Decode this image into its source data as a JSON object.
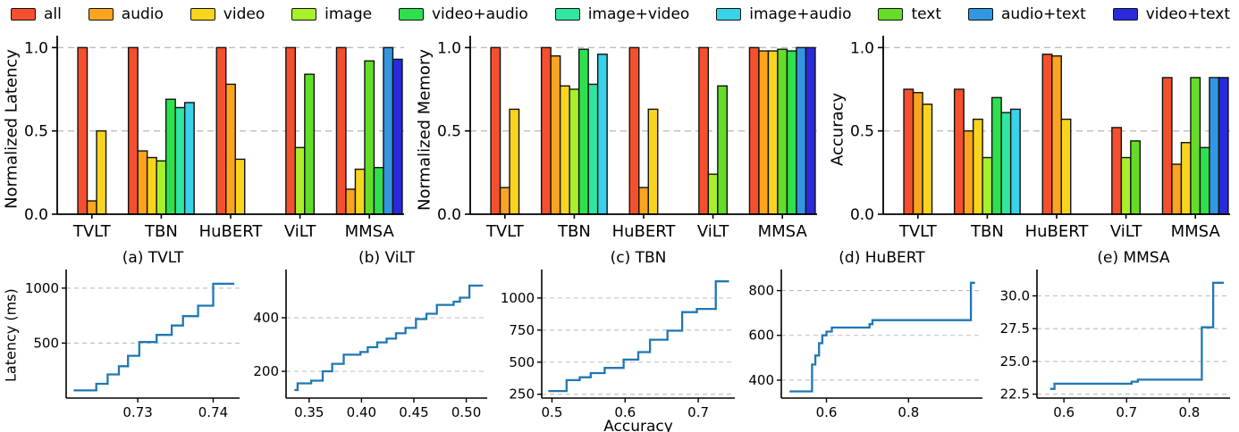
{
  "figure": {
    "line_color": "#1f77b4",
    "grid_color": "#bdbdbd",
    "legend": {
      "items": [
        {
          "label": "all",
          "color": "#F4502D"
        },
        {
          "label": "audio",
          "color": "#FCA420"
        },
        {
          "label": "video",
          "color": "#F9D41F"
        },
        {
          "label": "image",
          "color": "#A8F02B"
        },
        {
          "label": "video+audio",
          "color": "#2EE04E"
        },
        {
          "label": "image+video",
          "color": "#30E6A0"
        },
        {
          "label": "image+audio",
          "color": "#38D2EA"
        },
        {
          "label": "text",
          "color": "#64DC28"
        },
        {
          "label": "audio+text",
          "color": "#3396E2"
        },
        {
          "label": "video+text",
          "color": "#2A2ADC"
        }
      ]
    }
  },
  "chart_data": [
    {
      "type": "bar",
      "ylabel": "Normalized Latency",
      "ylim": [
        0,
        1.05
      ],
      "yticks": [
        0,
        0.5,
        1.0
      ],
      "ytick_labels": [
        "0.0",
        "0.5",
        "1.0"
      ],
      "grid_yticks": [
        0.5,
        1.0
      ],
      "categories": [
        "TVLT",
        "TBN",
        "HuBERT",
        "ViLT",
        "MMSA"
      ],
      "groups": [
        {
          "category": "TVLT",
          "bars": [
            [
              "all",
              1.0
            ],
            [
              "audio",
              0.08
            ],
            [
              "video",
              0.5
            ]
          ]
        },
        {
          "category": "TBN",
          "bars": [
            [
              "all",
              1.0
            ],
            [
              "audio",
              0.38
            ],
            [
              "video",
              0.34
            ],
            [
              "image",
              0.32
            ],
            [
              "video+audio",
              0.69
            ],
            [
              "image+video",
              0.64
            ],
            [
              "image+audio",
              0.67
            ]
          ]
        },
        {
          "category": "HuBERT",
          "bars": [
            [
              "all",
              1.0
            ],
            [
              "audio",
              0.78
            ],
            [
              "video",
              0.33
            ]
          ]
        },
        {
          "category": "ViLT",
          "bars": [
            [
              "all",
              1.0
            ],
            [
              "image",
              0.4
            ],
            [
              "text",
              0.84
            ]
          ]
        },
        {
          "category": "MMSA",
          "bars": [
            [
              "all",
              1.0
            ],
            [
              "audio",
              0.15
            ],
            [
              "video",
              0.27
            ],
            [
              "text",
              0.92
            ],
            [
              "video+audio",
              0.28
            ],
            [
              "audio+text",
              1.0
            ],
            [
              "video+text",
              0.93
            ]
          ]
        }
      ]
    },
    {
      "type": "bar",
      "ylabel": "Normalized Memory",
      "ylim": [
        0,
        1.05
      ],
      "yticks": [
        0,
        0.5,
        1.0
      ],
      "ytick_labels": [
        "0.0",
        "0.5",
        "1.0"
      ],
      "grid_yticks": [
        0.5,
        1.0
      ],
      "categories": [
        "TVLT",
        "TBN",
        "HuBERT",
        "ViLT",
        "MMSA"
      ],
      "groups": [
        {
          "category": "TVLT",
          "bars": [
            [
              "all",
              1.0
            ],
            [
              "audio",
              0.16
            ],
            [
              "video",
              0.63
            ]
          ]
        },
        {
          "category": "TBN",
          "bars": [
            [
              "all",
              1.0
            ],
            [
              "audio",
              0.95
            ],
            [
              "video",
              0.77
            ],
            [
              "image",
              0.75
            ],
            [
              "video+audio",
              0.99
            ],
            [
              "image+video",
              0.78
            ],
            [
              "image+audio",
              0.96
            ]
          ]
        },
        {
          "category": "HuBERT",
          "bars": [
            [
              "all",
              1.0
            ],
            [
              "audio",
              0.16
            ],
            [
              "video",
              0.63
            ]
          ]
        },
        {
          "category": "ViLT",
          "bars": [
            [
              "all",
              1.0
            ],
            [
              "image",
              0.24
            ],
            [
              "text",
              0.77
            ]
          ]
        },
        {
          "category": "MMSA",
          "bars": [
            [
              "all",
              1.0
            ],
            [
              "audio",
              0.98
            ],
            [
              "video",
              0.98
            ],
            [
              "text",
              0.99
            ],
            [
              "video+audio",
              0.98
            ],
            [
              "audio+text",
              1.0
            ],
            [
              "video+text",
              1.0
            ]
          ]
        }
      ]
    },
    {
      "type": "bar",
      "ylabel": "Accuracy",
      "ylim": [
        0,
        1.05
      ],
      "yticks": [
        0,
        0.5,
        1.0
      ],
      "ytick_labels": [
        "0.0",
        "0.5",
        "1.0"
      ],
      "grid_yticks": [
        0.5,
        1.0
      ],
      "categories": [
        "TVLT",
        "TBN",
        "HuBERT",
        "ViLT",
        "MMSA"
      ],
      "groups": [
        {
          "category": "TVLT",
          "bars": [
            [
              "all",
              0.75
            ],
            [
              "audio",
              0.73
            ],
            [
              "video",
              0.66
            ]
          ]
        },
        {
          "category": "TBN",
          "bars": [
            [
              "all",
              0.75
            ],
            [
              "audio",
              0.5
            ],
            [
              "video",
              0.57
            ],
            [
              "image",
              0.34
            ],
            [
              "video+audio",
              0.7
            ],
            [
              "image+video",
              0.61
            ],
            [
              "image+audio",
              0.63
            ]
          ]
        },
        {
          "category": "HuBERT",
          "bars": [
            [
              "all",
              0.96
            ],
            [
              "audio",
              0.95
            ],
            [
              "video",
              0.57
            ]
          ]
        },
        {
          "category": "ViLT",
          "bars": [
            [
              "all",
              0.52
            ],
            [
              "image",
              0.34
            ],
            [
              "text",
              0.44
            ]
          ]
        },
        {
          "category": "MMSA",
          "bars": [
            [
              "all",
              0.82
            ],
            [
              "audio",
              0.3
            ],
            [
              "video",
              0.43
            ],
            [
              "text",
              0.82
            ],
            [
              "video+audio",
              0.4
            ],
            [
              "audio+text",
              0.82
            ],
            [
              "video+text",
              0.82
            ]
          ]
        }
      ]
    },
    {
      "type": "line_step",
      "title": "(a) TVLT",
      "ylabel": "Latency (ms)",
      "xlabel": "",
      "xlim": [
        0.7205,
        0.7435
      ],
      "ylim": [
        0,
        1120
      ],
      "yticks": [
        500,
        1000
      ],
      "ytick_labels": [
        "500",
        "1000"
      ],
      "xticks": [
        0.73,
        0.74
      ],
      "xtick_labels": [
        "0.73",
        "0.74"
      ],
      "steps": [
        [
          0.7215,
          70
        ],
        [
          0.7245,
          130
        ],
        [
          0.726,
          215
        ],
        [
          0.7275,
          290
        ],
        [
          0.7287,
          385
        ],
        [
          0.7302,
          510
        ],
        [
          0.7325,
          575
        ],
        [
          0.7345,
          660
        ],
        [
          0.736,
          745
        ],
        [
          0.738,
          840
        ],
        [
          0.74,
          1040
        ]
      ],
      "x_end": 0.7428
    },
    {
      "type": "line_step",
      "title": "(b) ViLT",
      "ylabel": "",
      "xlabel": "",
      "xlim": [
        0.328,
        0.52
      ],
      "ylim": [
        100,
        560
      ],
      "yticks": [
        200,
        400
      ],
      "ytick_labels": [
        "200",
        "400"
      ],
      "xticks": [
        0.35,
        0.4,
        0.45,
        0.5
      ],
      "xtick_labels": [
        "0.35",
        "0.40",
        "0.45",
        "0.50"
      ],
      "steps": [
        [
          0.336,
          130
        ],
        [
          0.339,
          155
        ],
        [
          0.352,
          165
        ],
        [
          0.363,
          200
        ],
        [
          0.372,
          228
        ],
        [
          0.383,
          262
        ],
        [
          0.399,
          272
        ],
        [
          0.406,
          290
        ],
        [
          0.415,
          308
        ],
        [
          0.424,
          322
        ],
        [
          0.433,
          342
        ],
        [
          0.442,
          362
        ],
        [
          0.452,
          395
        ],
        [
          0.462,
          415
        ],
        [
          0.472,
          448
        ],
        [
          0.488,
          460
        ],
        [
          0.494,
          475
        ],
        [
          0.503,
          520
        ]
      ],
      "x_end": 0.516
    },
    {
      "type": "line_step",
      "title": "(c) TBN",
      "ylabel": "",
      "xlabel": "Accuracy",
      "xlim": [
        0.486,
        0.75
      ],
      "ylim": [
        220,
        1180
      ],
      "yticks": [
        250,
        500,
        750,
        1000
      ],
      "ytick_labels": [
        "250",
        "500",
        "750",
        "1000"
      ],
      "xticks": [
        0.5,
        0.6,
        0.7
      ],
      "xtick_labels": [
        "0.5",
        "0.6",
        "0.7"
      ],
      "steps": [
        [
          0.495,
          275
        ],
        [
          0.52,
          360
        ],
        [
          0.538,
          382
        ],
        [
          0.553,
          415
        ],
        [
          0.572,
          455
        ],
        [
          0.598,
          520
        ],
        [
          0.618,
          578
        ],
        [
          0.634,
          675
        ],
        [
          0.658,
          745
        ],
        [
          0.678,
          890
        ],
        [
          0.698,
          915
        ],
        [
          0.724,
          1130
        ]
      ],
      "x_end": 0.742
    },
    {
      "type": "line_step",
      "title": "(d) HuBERT",
      "ylabel": "",
      "xlabel": "",
      "xlim": [
        0.49,
        0.98
      ],
      "ylim": [
        320,
        870
      ],
      "yticks": [
        400,
        600,
        800
      ],
      "ytick_labels": [
        "400",
        "600",
        "800"
      ],
      "xticks": [
        0.6,
        0.8
      ],
      "xtick_labels": [
        "0.6",
        "0.8"
      ],
      "steps": [
        [
          0.51,
          350
        ],
        [
          0.565,
          470
        ],
        [
          0.573,
          510
        ],
        [
          0.582,
          565
        ],
        [
          0.59,
          600
        ],
        [
          0.6,
          617
        ],
        [
          0.613,
          635
        ],
        [
          0.705,
          650
        ],
        [
          0.712,
          668
        ],
        [
          0.952,
          835
        ]
      ],
      "x_end": 0.962
    },
    {
      "type": "line_step",
      "title": "(e) MMSA",
      "ylabel": "",
      "xlabel": "",
      "xlim": [
        0.557,
        0.865
      ],
      "ylim": [
        22.2,
        31.6
      ],
      "yticks": [
        22.5,
        25.0,
        27.5,
        30.0
      ],
      "ytick_labels": [
        "22.5",
        "25.0",
        "27.5",
        "30.0"
      ],
      "xticks": [
        0.6,
        0.7,
        0.8
      ],
      "xtick_labels": [
        "0.6",
        "0.7",
        "0.8"
      ],
      "steps": [
        [
          0.578,
          22.9
        ],
        [
          0.585,
          23.3
        ],
        [
          0.708,
          23.45
        ],
        [
          0.718,
          23.6
        ],
        [
          0.82,
          27.6
        ],
        [
          0.838,
          31.0
        ]
      ],
      "x_end": 0.855
    }
  ]
}
